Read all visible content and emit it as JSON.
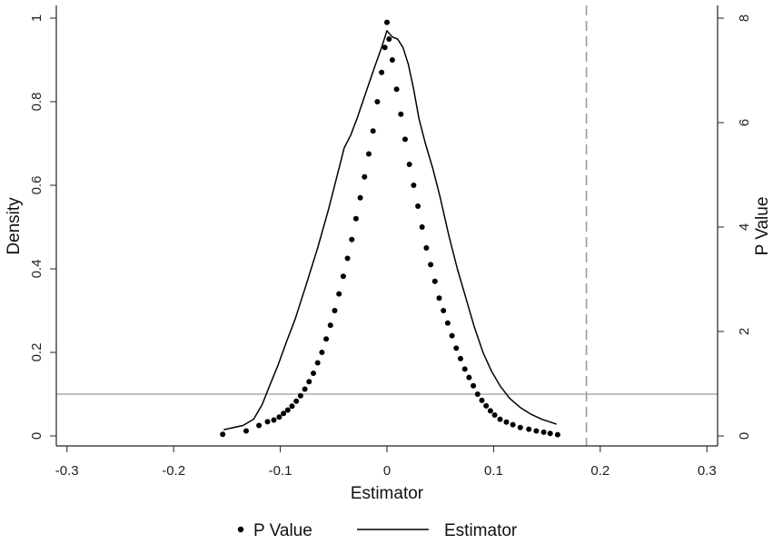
{
  "chart_data": {
    "type": "scatter",
    "xlabel": "Estimator",
    "ylabel_left": "Density",
    "ylabel_right": "P Value",
    "xlim": [
      -0.31,
      0.31
    ],
    "ylim_left": [
      0,
      1
    ],
    "ylim_right": [
      0,
      8
    ],
    "x_ticks": [
      -0.3,
      -0.2,
      -0.1,
      0,
      0.1,
      0.2,
      0.3
    ],
    "x_tick_labels": [
      "-0.3",
      "-0.2",
      "-0.1",
      "0",
      "0.1",
      "0.2",
      "0.3"
    ],
    "y_left_ticks": [
      0,
      0.2,
      0.4,
      0.6,
      0.8,
      1
    ],
    "y_left_tick_labels": [
      "0",
      "0.2",
      "0.4",
      "0.6",
      "0.8",
      "1"
    ],
    "y_right_ticks": [
      0,
      2,
      4,
      6,
      8
    ],
    "y_right_tick_labels": [
      "0",
      "2",
      "4",
      "6",
      "8"
    ],
    "reference_lines": {
      "horizontal_density": 0.1,
      "vertical_dashed_x": 0.187
    },
    "grid": false,
    "legend_position": "bottom",
    "series": [
      {
        "name": "P Value",
        "kind": "scatter",
        "axis": "left",
        "points": [
          [
            -0.154,
            0.004
          ],
          [
            -0.132,
            0.012
          ],
          [
            -0.12,
            0.025
          ],
          [
            -0.112,
            0.034
          ],
          [
            -0.106,
            0.038
          ],
          [
            -0.101,
            0.045
          ],
          [
            -0.097,
            0.054
          ],
          [
            -0.093,
            0.062
          ],
          [
            -0.089,
            0.071
          ],
          [
            -0.085,
            0.083
          ],
          [
            -0.081,
            0.096
          ],
          [
            -0.077,
            0.112
          ],
          [
            -0.073,
            0.13
          ],
          [
            -0.069,
            0.15
          ],
          [
            -0.065,
            0.175
          ],
          [
            -0.061,
            0.2
          ],
          [
            -0.057,
            0.232
          ],
          [
            -0.053,
            0.265
          ],
          [
            -0.049,
            0.3
          ],
          [
            -0.045,
            0.34
          ],
          [
            -0.041,
            0.382
          ],
          [
            -0.037,
            0.425
          ],
          [
            -0.033,
            0.47
          ],
          [
            -0.029,
            0.52
          ],
          [
            -0.025,
            0.57
          ],
          [
            -0.021,
            0.62
          ],
          [
            -0.017,
            0.675
          ],
          [
            -0.013,
            0.73
          ],
          [
            -0.009,
            0.8
          ],
          [
            -0.005,
            0.87
          ],
          [
            -0.002,
            0.93
          ],
          [
            0.0,
            0.99
          ],
          [
            0.002,
            0.95
          ],
          [
            0.005,
            0.9
          ],
          [
            0.009,
            0.83
          ],
          [
            0.013,
            0.77
          ],
          [
            0.017,
            0.71
          ],
          [
            0.021,
            0.65
          ],
          [
            0.025,
            0.6
          ],
          [
            0.029,
            0.55
          ],
          [
            0.033,
            0.5
          ],
          [
            0.037,
            0.45
          ],
          [
            0.041,
            0.41
          ],
          [
            0.045,
            0.37
          ],
          [
            0.049,
            0.33
          ],
          [
            0.053,
            0.3
          ],
          [
            0.057,
            0.27
          ],
          [
            0.061,
            0.24
          ],
          [
            0.065,
            0.21
          ],
          [
            0.069,
            0.185
          ],
          [
            0.073,
            0.16
          ],
          [
            0.077,
            0.14
          ],
          [
            0.081,
            0.12
          ],
          [
            0.085,
            0.1
          ],
          [
            0.089,
            0.085
          ],
          [
            0.093,
            0.072
          ],
          [
            0.097,
            0.06
          ],
          [
            0.101,
            0.05
          ],
          [
            0.106,
            0.04
          ],
          [
            0.112,
            0.033
          ],
          [
            0.118,
            0.027
          ],
          [
            0.125,
            0.02
          ],
          [
            0.133,
            0.016
          ],
          [
            0.14,
            0.012
          ],
          [
            0.147,
            0.009
          ],
          [
            0.153,
            0.006
          ],
          [
            0.16,
            0.003
          ]
        ]
      },
      {
        "name": "Estimator",
        "kind": "line",
        "axis": "left",
        "points": [
          [
            -0.153,
            0.015
          ],
          [
            -0.135,
            0.025
          ],
          [
            -0.125,
            0.04
          ],
          [
            -0.117,
            0.075
          ],
          [
            -0.11,
            0.12
          ],
          [
            -0.102,
            0.17
          ],
          [
            -0.095,
            0.22
          ],
          [
            -0.086,
            0.28
          ],
          [
            -0.076,
            0.36
          ],
          [
            -0.065,
            0.45
          ],
          [
            -0.055,
            0.54
          ],
          [
            -0.047,
            0.62
          ],
          [
            -0.04,
            0.69
          ],
          [
            -0.034,
            0.72
          ],
          [
            -0.028,
            0.76
          ],
          [
            -0.02,
            0.82
          ],
          [
            -0.012,
            0.88
          ],
          [
            -0.005,
            0.93
          ],
          [
            0.0,
            0.97
          ],
          [
            0.005,
            0.955
          ],
          [
            0.01,
            0.95
          ],
          [
            0.015,
            0.93
          ],
          [
            0.02,
            0.89
          ],
          [
            0.025,
            0.83
          ],
          [
            0.03,
            0.76
          ],
          [
            0.036,
            0.7
          ],
          [
            0.043,
            0.64
          ],
          [
            0.05,
            0.57
          ],
          [
            0.058,
            0.48
          ],
          [
            0.066,
            0.4
          ],
          [
            0.074,
            0.33
          ],
          [
            0.082,
            0.26
          ],
          [
            0.09,
            0.2
          ],
          [
            0.098,
            0.155
          ],
          [
            0.106,
            0.12
          ],
          [
            0.115,
            0.09
          ],
          [
            0.125,
            0.068
          ],
          [
            0.135,
            0.052
          ],
          [
            0.145,
            0.04
          ],
          [
            0.159,
            0.028
          ]
        ]
      }
    ]
  },
  "legend": {
    "items": [
      {
        "label": "P Value",
        "symbol": "dot"
      },
      {
        "label": "Estimator",
        "symbol": "line"
      }
    ]
  },
  "colors": {
    "data": "#000000",
    "axis": "#222222",
    "reference_line": "#9a9a9a"
  }
}
